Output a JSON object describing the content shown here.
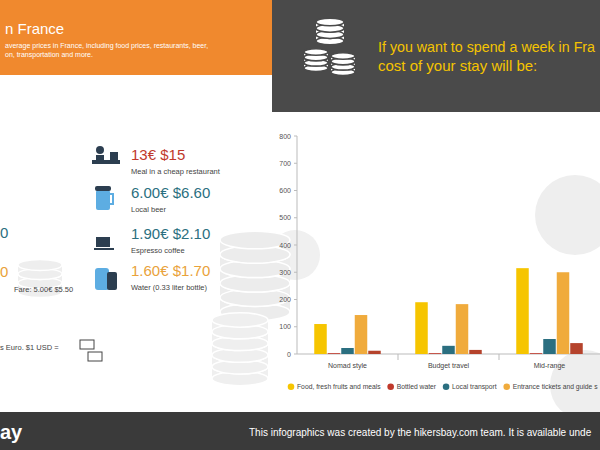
{
  "header": {
    "title": "n France",
    "subtitle_lines": [
      "average prices in France, including food prices, restaurants, beer,",
      "on, transportation and more."
    ]
  },
  "headline": [
    "If you want to spend a week in Fra",
    "cost of your stay will be:"
  ],
  "prices": [
    {
      "price": "13€ $15",
      "label": "Meal in a cheap restaurant"
    },
    {
      "price": "6.00€ $6.60",
      "label": "Local beer"
    },
    {
      "price": "1.90€ $2.10",
      "label": "Espresso coffee"
    },
    {
      "price": "1.60€ $1.70",
      "label": "Water (0.33 liter bottle)"
    }
  ],
  "left_fragments": {
    "price_a": "0",
    "price_b": "0",
    "fare": "Fare: 5.00€ $5.50",
    "currency": "s Euro. $1 USD ="
  },
  "footer": {
    "logo": "ay",
    "text": "This infographics was created by the hikersbay.com team. It is available unde"
  },
  "chart_data": {
    "type": "bar",
    "categories": [
      "Nomad style",
      "Budget travel",
      "Mid-range"
    ],
    "series": [
      {
        "name": "Food, fresh fruits and meals",
        "color": "#f6c500",
        "values": [
          110,
          190,
          315
        ]
      },
      {
        "name": "Bottled water",
        "color": "#c0392b",
        "values": [
          3,
          3,
          3
        ]
      },
      {
        "name": "Local transport",
        "color": "#2b6f80",
        "values": [
          22,
          30,
          55
        ]
      },
      {
        "name": "Entrance tickets and guide s",
        "color": "#f0ab3c",
        "values": [
          143,
          183,
          300
        ]
      },
      {
        "color": "#b5432c",
        "values": [
          12,
          15,
          40
        ]
      }
    ],
    "ylim": [
      0,
      800
    ],
    "yticks": [
      0,
      100,
      200,
      300,
      400,
      500,
      600,
      700,
      800
    ],
    "grid": false,
    "legend": "bottom"
  }
}
